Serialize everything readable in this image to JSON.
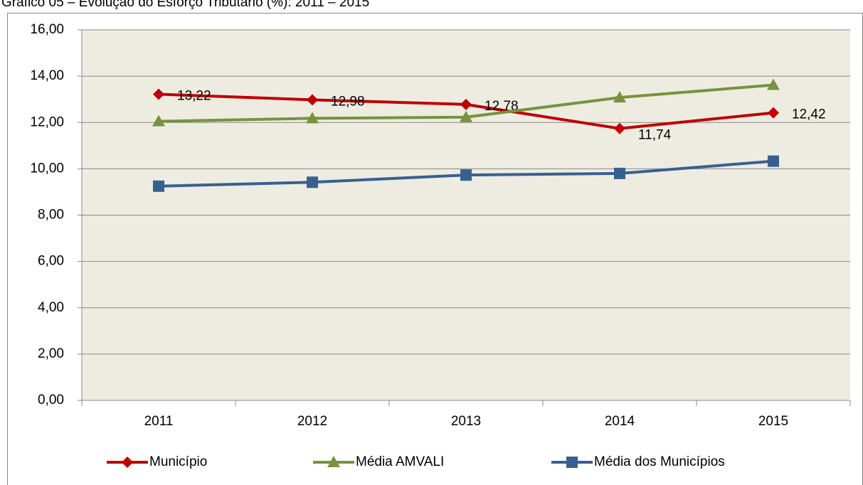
{
  "chart_data": {
    "type": "line",
    "title": "Gráfico 05 – Evolução do Esforço Tributário (%): 2011 – 2015",
    "categories": [
      "2011",
      "2012",
      "2013",
      "2014",
      "2015"
    ],
    "series": [
      {
        "name": "Município",
        "color": "#c00000",
        "marker": "diamond",
        "values": [
          13.22,
          12.98,
          12.78,
          11.74,
          12.42
        ],
        "value_labels": [
          "13,22",
          "12,98",
          "12,78",
          "11,74",
          "12,42"
        ]
      },
      {
        "name": "Média AMVALI",
        "color": "#77933c",
        "marker": "triangle",
        "values": [
          12.05,
          12.18,
          12.23,
          13.08,
          13.62
        ]
      },
      {
        "name": "Média dos Municípios",
        "color": "#376092",
        "marker": "square",
        "values": [
          9.25,
          9.42,
          9.73,
          9.8,
          10.33
        ]
      }
    ],
    "ylim": [
      0,
      16
    ],
    "yticks": [
      {
        "value": 0,
        "label": "0,00"
      },
      {
        "value": 2,
        "label": "2,00"
      },
      {
        "value": 4,
        "label": "4,00"
      },
      {
        "value": 6,
        "label": "6,00"
      },
      {
        "value": 8,
        "label": "8,00"
      },
      {
        "value": 10,
        "label": "10,00"
      },
      {
        "value": 12,
        "label": "12,00"
      },
      {
        "value": 14,
        "label": "14,00"
      },
      {
        "value": 16,
        "label": "16,00"
      }
    ],
    "grid": true,
    "legend": "bottom"
  }
}
